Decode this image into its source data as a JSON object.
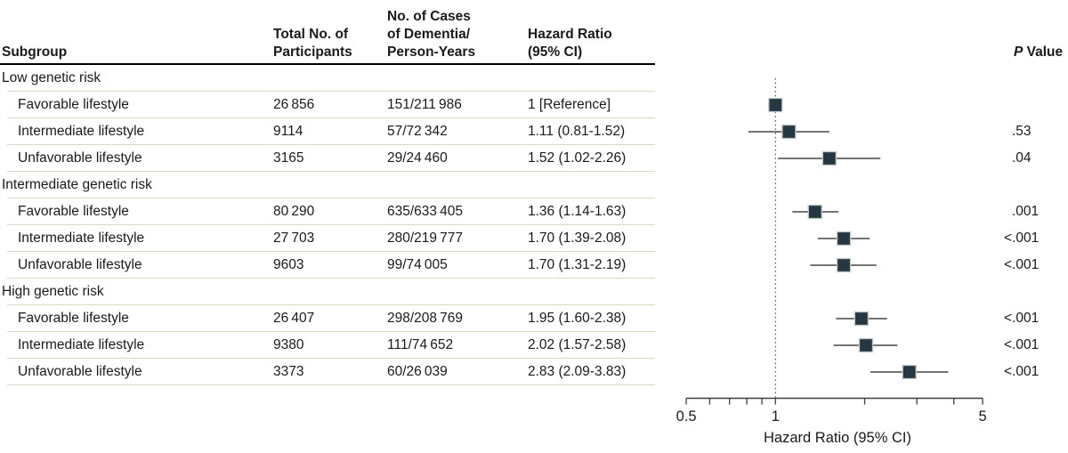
{
  "figure": {
    "columns": {
      "subgroup": "Subgroup",
      "participants": "Total No. of\nParticipants",
      "cases": "No. of Cases\nof Dementia/\nPerson-Years",
      "hazard_ratio": "Hazard Ratio\n(95% CI)",
      "p_value_italic": "P",
      "p_value_rest": " Value"
    }
  },
  "chart_data": {
    "type": "forest",
    "x_scale": "log",
    "xlim": [
      0.5,
      5
    ],
    "x_ticks": [
      0.5,
      0.6,
      0.7,
      0.8,
      0.9,
      1,
      2,
      3,
      4,
      5
    ],
    "x_tick_labels": [
      {
        "value": 0.5,
        "label": "0.5"
      },
      {
        "value": 1,
        "label": "1"
      },
      {
        "value": 5,
        "label": "5"
      }
    ],
    "xlabel": "Hazard Ratio (95% CI)",
    "reference_line_x": 1,
    "rows": [
      {
        "type": "group",
        "label": "Low genetic risk"
      },
      {
        "type": "entry",
        "label": "Favorable lifestyle",
        "participants": "26 856",
        "cases": "151/211 986",
        "hr_text": "1 [Reference]",
        "hr": 1.0,
        "ci_low": null,
        "ci_high": null,
        "p": ""
      },
      {
        "type": "entry",
        "label": "Intermediate lifestyle",
        "participants": "9114",
        "cases": "57/72 342",
        "hr_text": "1.11 (0.81-1.52)",
        "hr": 1.11,
        "ci_low": 0.81,
        "ci_high": 1.52,
        "p": ".53"
      },
      {
        "type": "entry",
        "label": "Unfavorable lifestyle",
        "participants": "3165",
        "cases": "29/24 460",
        "hr_text": "1.52 (1.02-2.26)",
        "hr": 1.52,
        "ci_low": 1.02,
        "ci_high": 2.26,
        "p": ".04"
      },
      {
        "type": "group",
        "label": "Intermediate genetic risk"
      },
      {
        "type": "entry",
        "label": "Favorable lifestyle",
        "participants": "80 290",
        "cases": "635/633 405",
        "hr_text": "1.36 (1.14-1.63)",
        "hr": 1.36,
        "ci_low": 1.14,
        "ci_high": 1.63,
        "p": ".001"
      },
      {
        "type": "entry",
        "label": "Intermediate lifestyle",
        "participants": "27 703",
        "cases": "280/219 777",
        "hr_text": "1.70 (1.39-2.08)",
        "hr": 1.7,
        "ci_low": 1.39,
        "ci_high": 2.08,
        "p": "<.001"
      },
      {
        "type": "entry",
        "label": "Unfavorable lifestyle",
        "participants": "9603",
        "cases": "99/74 005",
        "hr_text": "1.70 (1.31-2.19)",
        "hr": 1.7,
        "ci_low": 1.31,
        "ci_high": 2.19,
        "p": "<.001"
      },
      {
        "type": "group",
        "label": "High genetic risk"
      },
      {
        "type": "entry",
        "label": "Favorable lifestyle",
        "participants": "26 407",
        "cases": "298/208 769",
        "hr_text": "1.95 (1.60-2.38)",
        "hr": 1.95,
        "ci_low": 1.6,
        "ci_high": 2.38,
        "p": "<.001"
      },
      {
        "type": "entry",
        "label": "Intermediate lifestyle",
        "participants": "9380",
        "cases": "111/74 652",
        "hr_text": "2.02 (1.57-2.58)",
        "hr": 2.02,
        "ci_low": 1.57,
        "ci_high": 2.58,
        "p": "<.001"
      },
      {
        "type": "entry",
        "label": "Unfavorable lifestyle",
        "participants": "3373",
        "cases": "60/26 039",
        "hr_text": "2.83 (2.09-3.83)",
        "hr": 2.83,
        "ci_low": 2.09,
        "ci_high": 3.83,
        "p": "<.001"
      }
    ]
  },
  "colors": {
    "marker": "#253842",
    "marker_outline": "#c3c9ca",
    "ci_line": "#757575",
    "reference_line": "#555555",
    "axis": "#3f3f3f",
    "divider": "#ddd7c6",
    "header_rule": "#000000",
    "text": "#1a1a1a"
  }
}
